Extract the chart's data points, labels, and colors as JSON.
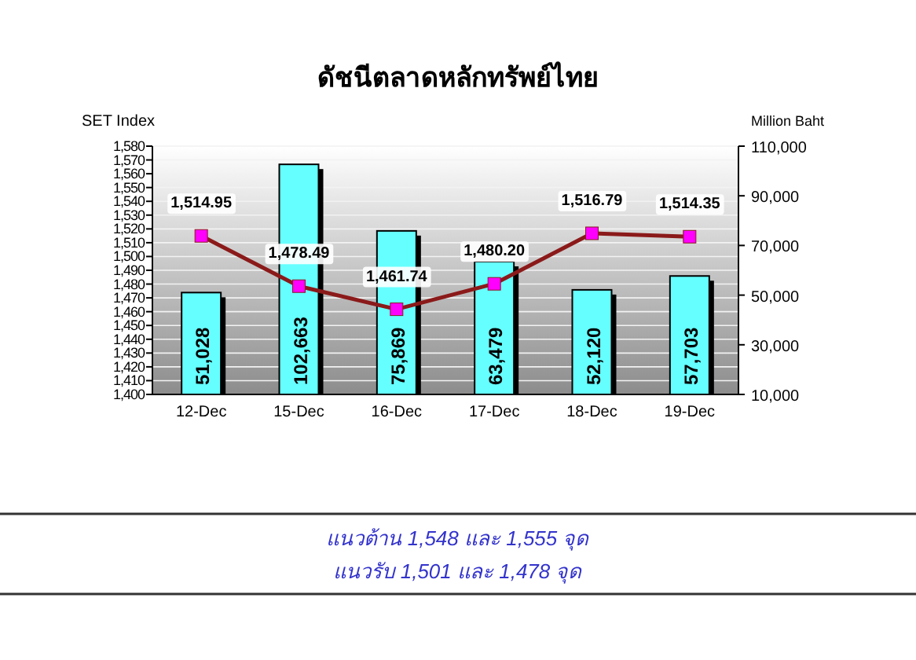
{
  "chart_data": {
    "type": "bar",
    "title": "ดัชนีตลาดหลักทรัพย์ไทย",
    "ylabel": "SET Index",
    "y2label": "Million Baht",
    "categories": [
      "12-Dec",
      "15-Dec",
      "16-Dec",
      "17-Dec",
      "18-Dec",
      "19-Dec"
    ],
    "series": [
      {
        "axis": "y2",
        "color": "#66ffff",
        "values": [
          51028,
          102663,
          75869,
          63479,
          52120,
          57703
        ],
        "value_labels": [
          "51,028",
          "102,663",
          "75,869",
          "63,479",
          "52,120",
          "57,703"
        ]
      },
      {
        "type": "line",
        "axis": "y",
        "color": "#8b1a1a",
        "values": [
          1514.95,
          1478.49,
          1461.74,
          1480.2,
          1516.79,
          1514.35
        ],
        "value_labels": [
          "1,514.95",
          "1,478.49",
          "1,461.74",
          "1,480.20",
          "1,516.79",
          "1,514.35"
        ]
      }
    ],
    "marker": "square",
    "grid": "y",
    "ylim": [
      1400,
      1580
    ],
    "yticks": [
      {
        "value": 1400,
        "label": "1,400"
      },
      {
        "value": 1410,
        "label": "1,410"
      },
      {
        "value": 1420,
        "label": "1,420"
      },
      {
        "value": 1430,
        "label": "1,430"
      },
      {
        "value": 1440,
        "label": "1,440"
      },
      {
        "value": 1450,
        "label": "1,450"
      },
      {
        "value": 1460,
        "label": "1,460"
      },
      {
        "value": 1470,
        "label": "1,470"
      },
      {
        "value": 1480,
        "label": "1,480"
      },
      {
        "value": 1490,
        "label": "1,490"
      },
      {
        "value": 1500,
        "label": "1,500"
      },
      {
        "value": 1510,
        "label": "1,510"
      },
      {
        "value": 1520,
        "label": "1,520"
      },
      {
        "value": 1530,
        "label": "1,530"
      },
      {
        "value": 1540,
        "label": "1,540"
      },
      {
        "value": 1550,
        "label": "1,550"
      },
      {
        "value": 1560,
        "label": "1,560"
      },
      {
        "value": 1570,
        "label": "1,570"
      },
      {
        "value": 1580,
        "label": "1,580"
      }
    ],
    "y2lim": [
      10000,
      110000
    ],
    "y2ticks": [
      {
        "value": 10000,
        "label": "10,000"
      },
      {
        "value": 30000,
        "label": "30,000"
      },
      {
        "value": 50000,
        "label": "50,000"
      },
      {
        "value": 70000,
        "label": "70,000"
      },
      {
        "value": 90000,
        "label": "90,000"
      },
      {
        "value": 110000,
        "label": "110,000"
      }
    ],
    "annotations": [
      "แนวต้าน 1,548 และ 1,555 จุด",
      "แนวรับ 1,501 และ 1,478 จุด"
    ]
  }
}
